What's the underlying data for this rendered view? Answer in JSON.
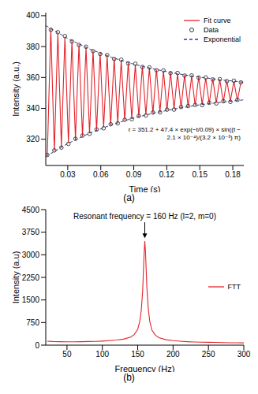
{
  "chart_data": [
    {
      "type": "line",
      "label": "(a)",
      "x_label": "Time (s)",
      "y_label": "Intensity (a.u.)",
      "xlim": [
        0.01,
        0.19
      ],
      "xticks": [
        0.03,
        0.06,
        0.09,
        0.12,
        0.15,
        0.18
      ],
      "ylim": [
        303,
        402
      ],
      "yticks": [
        320,
        340,
        360,
        380,
        400
      ],
      "legend": "upper right",
      "annotation": "r = 351.2 + 47.4 × exp(−t/0.09) × sin((t − 2.1 × 10⁻⁴)/(3.2 × 10⁻³) π)",
      "series": [
        {
          "name": "Fit curve",
          "type": "line",
          "color": "#e3242b",
          "x": [
            0.0114,
            0.013,
            0.0146,
            0.0162,
            0.0178,
            0.0194,
            0.021,
            0.0226,
            0.0242,
            0.0258,
            0.0274,
            0.029,
            0.0306,
            0.0322,
            0.0338,
            0.0354,
            0.037,
            0.0386,
            0.0402,
            0.0418,
            0.0434,
            0.045,
            0.0466,
            0.0482,
            0.0498,
            0.0514,
            0.053,
            0.0546,
            0.0562,
            0.0578,
            0.0594,
            0.061,
            0.0626,
            0.0642,
            0.0658,
            0.0674,
            0.069,
            0.0706,
            0.0722,
            0.0738,
            0.0754,
            0.077,
            0.0786,
            0.0802,
            0.0818,
            0.0834,
            0.085,
            0.0866,
            0.0882,
            0.0898,
            0.0914,
            0.093,
            0.0946,
            0.0962,
            0.0978,
            0.0994,
            0.101,
            0.1026,
            0.1042,
            0.1058,
            0.1074,
            0.109,
            0.1106,
            0.1122,
            0.1138,
            0.1154,
            0.117,
            0.1186,
            0.1202,
            0.1218,
            0.1234,
            0.125,
            0.1266,
            0.1282,
            0.1298,
            0.1314,
            0.133,
            0.1346,
            0.1362,
            0.1378,
            0.1394,
            0.141,
            0.1426,
            0.1442,
            0.1458,
            0.1474,
            0.149,
            0.1506,
            0.1522,
            0.1538,
            0.1554,
            0.157,
            0.1586,
            0.1602,
            0.1618,
            0.1634,
            0.165,
            0.1666,
            0.1682,
            0.1698,
            0.1714,
            0.173,
            0.1746,
            0.1762,
            0.1778,
            0.1794,
            0.181,
            0.1826,
            0.1842,
            0.1858,
            0.1874
          ],
          "values": [
            309.4,
            351.2,
            391.5,
            351.2,
            312.3,
            351.2,
            388.7,
            351.2,
            315.0,
            351.2,
            386.2,
            351.2,
            317.5,
            351.2,
            383.8,
            351.2,
            319.8,
            351.2,
            381.5,
            351.2,
            321.9,
            351.2,
            379.4,
            351.2,
            323.9,
            351.2,
            377.5,
            351.2,
            325.8,
            351.2,
            375.7,
            351.2,
            327.6,
            351.2,
            374.0,
            351.2,
            329.2,
            351.2,
            372.5,
            351.2,
            330.7,
            351.2,
            371.0,
            351.2,
            332.1,
            351.2,
            369.6,
            351.2,
            333.4,
            351.2,
            368.4,
            351.2,
            334.6,
            351.2,
            367.2,
            351.2,
            335.8,
            351.2,
            366.1,
            351.2,
            336.8,
            351.2,
            365.1,
            351.2,
            337.8,
            351.2,
            364.1,
            351.2,
            338.7,
            351.2,
            363.2,
            351.2,
            339.6,
            351.2,
            362.4,
            351.2,
            340.4,
            351.2,
            361.6,
            351.2,
            341.1,
            351.2,
            360.9,
            351.2,
            341.8,
            351.2,
            360.3,
            351.2,
            342.5,
            351.2,
            359.6,
            351.2,
            343.1,
            351.2,
            359.1,
            351.2,
            343.6,
            351.2,
            358.5,
            351.2,
            344.1,
            351.2,
            358.0,
            351.2,
            344.6,
            351.2,
            357.5,
            351.2,
            345.1,
            351.2,
            357.1
          ]
        },
        {
          "name": "Data",
          "type": "scatter",
          "marker": "circle",
          "color": "#333333",
          "x": [
            0.0114,
            0.0146,
            0.0178,
            0.021,
            0.0242,
            0.0274,
            0.0306,
            0.0338,
            0.037,
            0.0402,
            0.0434,
            0.0466,
            0.0498,
            0.053,
            0.0562,
            0.0594,
            0.0626,
            0.0658,
            0.069,
            0.0722,
            0.0754,
            0.0786,
            0.0818,
            0.085,
            0.0882,
            0.0914,
            0.0946,
            0.0978,
            0.101,
            0.1042,
            0.1074,
            0.1106,
            0.1138,
            0.117,
            0.1202,
            0.1234,
            0.1266,
            0.1298,
            0.133,
            0.1362,
            0.1394,
            0.1426,
            0.1458,
            0.149,
            0.1522,
            0.1554,
            0.1586,
            0.1618,
            0.165,
            0.1682,
            0.1714,
            0.1746,
            0.1778,
            0.181,
            0.1842,
            0.1874
          ],
          "values": [
            309.8,
            390.9,
            312.8,
            389.3,
            314.6,
            386.8,
            317.0,
            383.3,
            320.3,
            381.0,
            322.4,
            379.9,
            323.5,
            377.0,
            326.3,
            375.2,
            327.1,
            374.5,
            329.7,
            372.0,
            330.3,
            371.5,
            332.6,
            369.1,
            333.0,
            368.9,
            335.1,
            366.8,
            335.4,
            366.5,
            337.3,
            364.7,
            337.4,
            364.6,
            339.2,
            362.8,
            339.2,
            362.9,
            340.9,
            361.2,
            341.5,
            361.3,
            342.2,
            359.9,
            342.1,
            360.0,
            343.6,
            358.7,
            343.2,
            358.9,
            344.6,
            357.6,
            344.2,
            357.9,
            345.5,
            356.8
          ]
        },
        {
          "name": "Exponential",
          "type": "line",
          "line_style": "dashed",
          "color": "#2f3b8f",
          "x": [
            0.01,
            0.03,
            0.05,
            0.07,
            0.09,
            0.11,
            0.13,
            0.15,
            0.17,
            0.19
          ],
          "values": [
            393.6,
            385.2,
            378.4,
            373.0,
            368.6,
            365.2,
            362.4,
            360.2,
            358.4,
            356.9
          ]
        },
        {
          "name": "Exponential",
          "type": "line",
          "line_style": "dashed",
          "color": "#2f3b8f",
          "x": [
            0.01,
            0.03,
            0.05,
            0.07,
            0.09,
            0.11,
            0.13,
            0.15,
            0.17,
            0.19
          ],
          "values": [
            308.8,
            317.2,
            324.0,
            329.4,
            333.8,
            337.2,
            340.0,
            342.3,
            344.0,
            345.5
          ]
        }
      ]
    },
    {
      "type": "line",
      "label": "(b)",
      "x_label": "Frequency (Hz)",
      "y_label": "Intensity (a.u)",
      "xlim": [
        20,
        300
      ],
      "xticks": [
        50,
        100,
        150,
        200,
        250,
        300
      ],
      "ylim": [
        0,
        4500
      ],
      "yticks": [
        0,
        750,
        1500,
        2250,
        3000,
        3750,
        4500
      ],
      "legend": "right",
      "annotation": "Resonant frequency = 160 Hz (l=2, m=0)",
      "series": [
        {
          "name": "FTT",
          "type": "line",
          "color": "#e3242b",
          "x": [
            22,
            30,
            40,
            50,
            60,
            70,
            80,
            90,
            100,
            110,
            120,
            130,
            140,
            145,
            150,
            153,
            155,
            157,
            158,
            159,
            160,
            161,
            162,
            163,
            165,
            167,
            170,
            175,
            180,
            190,
            200,
            210,
            220,
            230,
            240,
            250,
            260,
            270,
            280,
            290,
            300
          ],
          "values": [
            130,
            120,
            115,
            110,
            110,
            115,
            120,
            125,
            135,
            150,
            170,
            200,
            270,
            350,
            520,
            800,
            1150,
            1800,
            2400,
            3000,
            3450,
            3100,
            2500,
            1900,
            1200,
            800,
            500,
            330,
            250,
            180,
            150,
            130,
            115,
            105,
            100,
            95,
            90,
            85,
            80,
            78,
            75
          ]
        }
      ]
    }
  ]
}
